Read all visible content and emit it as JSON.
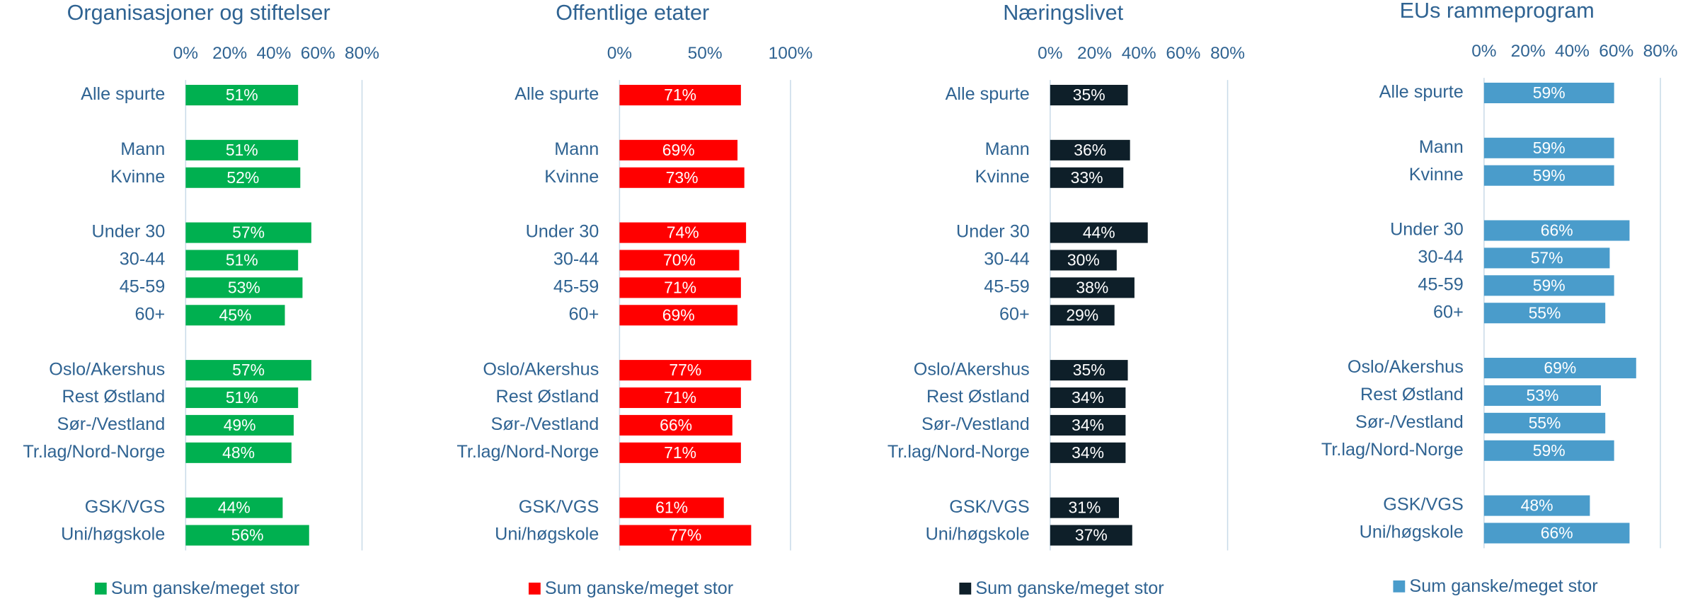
{
  "chart_data": [
    {
      "type": "bar",
      "horizontal": true,
      "title": "Organisasjoner og stiftelser",
      "categories": [
        "Alle spurte",
        null,
        "Mann",
        "Kvinne",
        null,
        "Under 30",
        "30-44",
        "45-59",
        "60+",
        null,
        "Oslo/Akershus",
        "Rest Østland",
        "Sør-/Vestland",
        "Tr.lag/Nord-Norge",
        null,
        "GSK/VGS",
        "Uni/høgskole"
      ],
      "series": [
        {
          "name": "Sum ganske/meget stor",
          "color": "#00b050",
          "values": [
            51,
            null,
            51,
            52,
            null,
            57,
            51,
            53,
            45,
            null,
            57,
            51,
            49,
            48,
            null,
            44,
            56
          ],
          "value_labels": [
            "51%",
            null,
            "51%",
            "52%",
            null,
            "57%",
            "51%",
            "53%",
            "45%",
            null,
            "57%",
            "51%",
            "49%",
            "48%",
            null,
            "44%",
            "56%"
          ]
        }
      ],
      "xlim": [
        0,
        80
      ],
      "xticks": [
        {
          "value": 0,
          "label": "0%"
        },
        {
          "value": 20,
          "label": "20%"
        },
        {
          "value": 40,
          "label": "40%"
        },
        {
          "value": 60,
          "label": "60%"
        },
        {
          "value": 80,
          "label": "80%"
        }
      ],
      "grid": false,
      "legend": "bottom"
    },
    {
      "type": "bar",
      "horizontal": true,
      "title": "Offentlige etater",
      "categories": [
        "Alle spurte",
        null,
        "Mann",
        "Kvinne",
        null,
        "Under 30",
        "30-44",
        "45-59",
        "60+",
        null,
        "Oslo/Akershus",
        "Rest Østland",
        "Sør-/Vestland",
        "Tr.lag/Nord-Norge",
        null,
        "GSK/VGS",
        "Uni/høgskole"
      ],
      "series": [
        {
          "name": "Sum ganske/meget stor",
          "color": "#ff0000",
          "values": [
            71,
            null,
            69,
            73,
            null,
            74,
            70,
            71,
            69,
            null,
            77,
            71,
            66,
            71,
            null,
            61,
            77
          ],
          "value_labels": [
            "71%",
            null,
            "69%",
            "73%",
            null,
            "74%",
            "70%",
            "71%",
            "69%",
            null,
            "77%",
            "71%",
            "66%",
            "71%",
            null,
            "61%",
            "77%"
          ]
        }
      ],
      "xlim": [
        0,
        100
      ],
      "xticks": [
        {
          "value": 0,
          "label": "0%"
        },
        {
          "value": 50,
          "label": "50%"
        },
        {
          "value": 100,
          "label": "100%"
        }
      ],
      "grid": false,
      "legend": "bottom"
    },
    {
      "type": "bar",
      "horizontal": true,
      "title": "Næringslivet",
      "categories": [
        "Alle spurte",
        null,
        "Mann",
        "Kvinne",
        null,
        "Under 30",
        "30-44",
        "45-59",
        "60+",
        null,
        "Oslo/Akershus",
        "Rest Østland",
        "Sør-/Vestland",
        "Tr.lag/Nord-Norge",
        null,
        "GSK/VGS",
        "Uni/høgskole"
      ],
      "series": [
        {
          "name": "Sum ganske/meget stor",
          "color": "#0e1f29",
          "values": [
            35,
            null,
            36,
            33,
            null,
            44,
            30,
            38,
            29,
            null,
            35,
            34,
            34,
            34,
            null,
            31,
            37
          ],
          "value_labels": [
            "35%",
            null,
            "36%",
            "33%",
            null,
            "44%",
            "30%",
            "38%",
            "29%",
            null,
            "35%",
            "34%",
            "34%",
            "34%",
            null,
            "31%",
            "37%"
          ]
        }
      ],
      "xlim": [
        0,
        80
      ],
      "xticks": [
        {
          "value": 0,
          "label": "0%"
        },
        {
          "value": 20,
          "label": "20%"
        },
        {
          "value": 40,
          "label": "40%"
        },
        {
          "value": 60,
          "label": "60%"
        },
        {
          "value": 80,
          "label": "80%"
        }
      ],
      "grid": false,
      "legend": "bottom"
    },
    {
      "type": "bar",
      "horizontal": true,
      "title": "EUs rammeprogram",
      "categories": [
        "Alle spurte",
        null,
        "Mann",
        "Kvinne",
        null,
        "Under 30",
        "30-44",
        "45-59",
        "60+",
        null,
        "Oslo/Akershus",
        "Rest Østland",
        "Sør-/Vestland",
        "Tr.lag/Nord-Norge",
        null,
        "GSK/VGS",
        "Uni/høgskole"
      ],
      "series": [
        {
          "name": "Sum ganske/meget stor",
          "color": "#4a9ccb",
          "values": [
            59,
            null,
            59,
            59,
            null,
            66,
            57,
            59,
            55,
            null,
            69,
            53,
            55,
            59,
            null,
            48,
            66
          ],
          "value_labels": [
            "59%",
            null,
            "59%",
            "59%",
            null,
            "66%",
            "57%",
            "59%",
            "55%",
            null,
            "69%",
            "53%",
            "55%",
            "59%",
            null,
            "48%",
            "66%"
          ]
        }
      ],
      "xlim": [
        0,
        80
      ],
      "xticks": [
        {
          "value": 0,
          "label": "0%"
        },
        {
          "value": 20,
          "label": "20%"
        },
        {
          "value": 40,
          "label": "40%"
        },
        {
          "value": 60,
          "label": "60%"
        },
        {
          "value": 80,
          "label": "80%"
        }
      ],
      "grid": false,
      "legend": "bottom"
    }
  ]
}
